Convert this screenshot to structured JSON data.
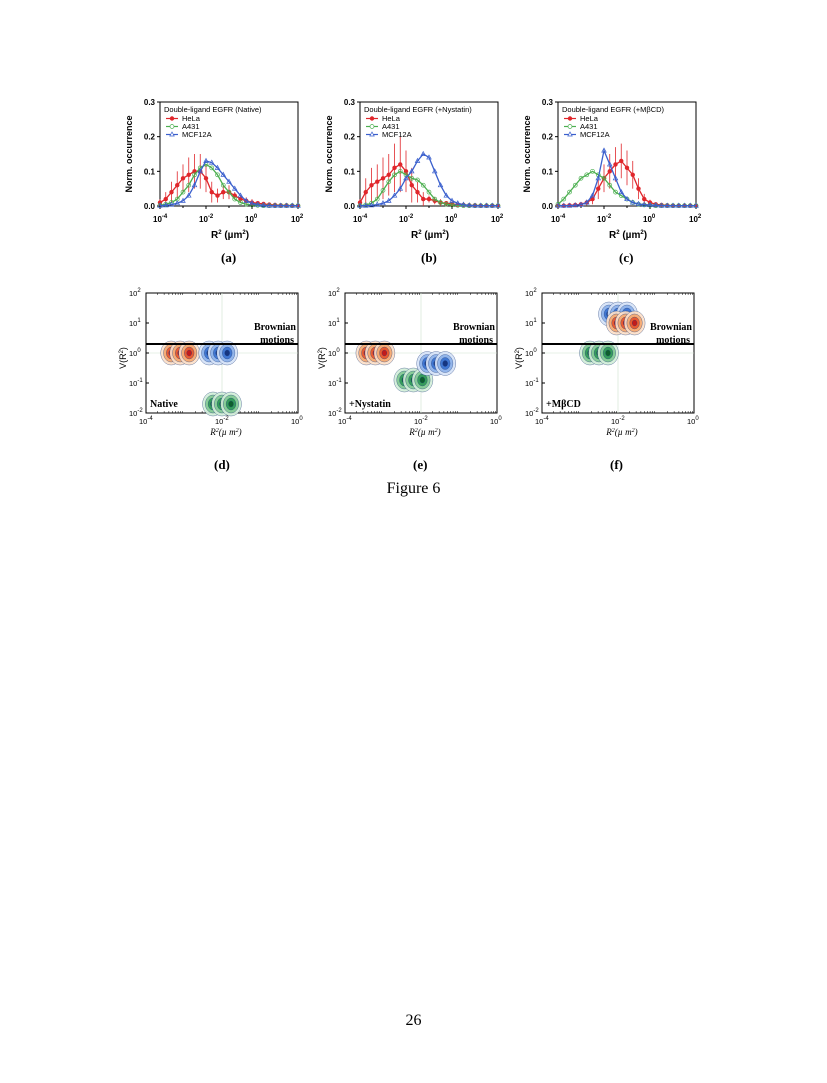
{
  "figure_caption": "Figure 6",
  "page_number": "26",
  "colors": {
    "HeLa": "#e0262b",
    "A431": "#4caf50",
    "MCF12A": "#3a5fcd"
  },
  "chart_data": [
    {
      "type": "line",
      "panel": "(a)",
      "legend_title": "Double-ligand EGFR (Native)",
      "ylabel": "Norm. occurrence",
      "xlabel": "R2 (µm2)",
      "xscale": "log",
      "xlim_exp": [
        -4,
        2
      ],
      "ylim": [
        0,
        0.3
      ],
      "yticks": [
        "0.0",
        "0.1",
        "0.2",
        "0.3"
      ],
      "xticks": [
        "10-4",
        "10-2",
        "100",
        "102"
      ],
      "series": [
        {
          "name": "HeLa",
          "marker": "filled-circle",
          "error_bars": true,
          "log10_x": [
            -4,
            -3.75,
            -3.5,
            -3.25,
            -3,
            -2.75,
            -2.5,
            -2.25,
            -2,
            -1.75,
            -1.5,
            -1.25,
            -1,
            -0.75,
            -0.5,
            -0.25,
            0,
            0.25,
            0.5,
            0.75,
            1,
            1.25,
            1.5,
            1.75,
            2
          ],
          "y": [
            0.01,
            0.02,
            0.04,
            0.06,
            0.08,
            0.09,
            0.1,
            0.1,
            0.08,
            0.04,
            0.03,
            0.04,
            0.04,
            0.03,
            0.02,
            0.015,
            0.01,
            0.008,
            0.006,
            0.004,
            0.003,
            0.002,
            0.002,
            0.001,
            0.001
          ],
          "err": [
            0.01,
            0.02,
            0.03,
            0.04,
            0.04,
            0.05,
            0.05,
            0.05,
            0.04,
            0.03,
            0.02,
            0.02,
            0.02,
            0.01,
            0.01,
            0.01,
            0.01,
            0.005,
            0.005,
            0.003,
            0.002,
            0.002,
            0.001,
            0.001,
            0.001
          ]
        },
        {
          "name": "A431",
          "marker": "open-circle",
          "log10_x": [
            -4,
            -3.75,
            -3.5,
            -3.25,
            -3,
            -2.75,
            -2.5,
            -2.25,
            -2,
            -1.75,
            -1.5,
            -1.25,
            -1,
            -0.75,
            -0.5,
            -0.25,
            0,
            0.25,
            0.5,
            0.75,
            1,
            1.25,
            1.5,
            1.75,
            2
          ],
          "y": [
            0.002,
            0.005,
            0.01,
            0.02,
            0.04,
            0.06,
            0.09,
            0.11,
            0.12,
            0.11,
            0.09,
            0.06,
            0.04,
            0.02,
            0.01,
            0.005,
            0.003,
            0.002,
            0.001,
            0.001,
            0.001,
            0.001,
            0.001,
            0.001,
            0.001
          ]
        },
        {
          "name": "MCF12A",
          "marker": "open-triangle",
          "log10_x": [
            -4,
            -3.75,
            -3.5,
            -3.25,
            -3,
            -2.75,
            -2.5,
            -2.25,
            -2,
            -1.75,
            -1.5,
            -1.25,
            -1,
            -0.75,
            -0.5,
            -0.25,
            0,
            0.25,
            0.5,
            0.75,
            1,
            1.25,
            1.5,
            1.75,
            2
          ],
          "y": [
            0.001,
            0.002,
            0.004,
            0.008,
            0.015,
            0.03,
            0.06,
            0.1,
            0.13,
            0.125,
            0.11,
            0.09,
            0.07,
            0.05,
            0.03,
            0.015,
            0.008,
            0.004,
            0.002,
            0.001,
            0.001,
            0.001,
            0.001,
            0.001,
            0.001
          ]
        }
      ]
    },
    {
      "type": "line",
      "panel": "(b)",
      "legend_title": "Double-ligand EGFR (+Nystatin)",
      "ylabel": "Norm. occurrence",
      "xlabel": "R2 (µm2)",
      "xscale": "log",
      "xlim_exp": [
        -4,
        2
      ],
      "ylim": [
        0,
        0.3
      ],
      "yticks": [
        "0.0",
        "0.1",
        "0.2",
        "0.3"
      ],
      "xticks": [
        "10-4",
        "10-2",
        "100",
        "102"
      ],
      "series": [
        {
          "name": "HeLa",
          "marker": "filled-circle",
          "error_bars": true,
          "log10_x": [
            -4,
            -3.75,
            -3.5,
            -3.25,
            -3,
            -2.75,
            -2.5,
            -2.25,
            -2,
            -1.75,
            -1.5,
            -1.25,
            -1,
            -0.75,
            -0.5,
            -0.25,
            0,
            0.25,
            0.5,
            0.75,
            1,
            1.25,
            1.5,
            1.75,
            2
          ],
          "y": [
            0.01,
            0.04,
            0.06,
            0.07,
            0.08,
            0.09,
            0.11,
            0.12,
            0.1,
            0.06,
            0.04,
            0.02,
            0.02,
            0.015,
            0.01,
            0.008,
            0.006,
            0.004,
            0.003,
            0.002,
            0.002,
            0.001,
            0.001,
            0.001,
            0.001
          ],
          "err": [
            0.01,
            0.04,
            0.05,
            0.05,
            0.06,
            0.06,
            0.07,
            0.08,
            0.06,
            0.05,
            0.03,
            0.02,
            0.01,
            0.01,
            0.01,
            0.005,
            0.005,
            0.003,
            0.002,
            0.002,
            0.001,
            0.001,
            0.001,
            0.001,
            0.001
          ]
        },
        {
          "name": "A431",
          "marker": "open-circle",
          "log10_x": [
            -4,
            -3.75,
            -3.5,
            -3.25,
            -3,
            -2.75,
            -2.5,
            -2.25,
            -2,
            -1.75,
            -1.5,
            -1.25,
            -1,
            -0.75,
            -0.5,
            -0.25,
            0,
            0.25,
            0.5,
            0.75,
            1,
            1.25,
            1.5,
            1.75,
            2
          ],
          "y": [
            0.001,
            0.003,
            0.008,
            0.02,
            0.045,
            0.07,
            0.09,
            0.1,
            0.09,
            0.08,
            0.075,
            0.06,
            0.04,
            0.02,
            0.01,
            0.005,
            0.003,
            0.002,
            0.001,
            0.001,
            0.001,
            0.001,
            0.001,
            0.001,
            0.001
          ]
        },
        {
          "name": "MCF12A",
          "marker": "open-triangle",
          "log10_x": [
            -4,
            -3.75,
            -3.5,
            -3.25,
            -3,
            -2.75,
            -2.5,
            -2.25,
            -2,
            -1.75,
            -1.5,
            -1.25,
            -1,
            -0.75,
            -0.5,
            -0.25,
            0,
            0.25,
            0.5,
            0.75,
            1,
            1.25,
            1.5,
            1.75,
            2
          ],
          "y": [
            0.001,
            0.001,
            0.002,
            0.004,
            0.008,
            0.015,
            0.03,
            0.05,
            0.08,
            0.1,
            0.13,
            0.15,
            0.14,
            0.1,
            0.06,
            0.03,
            0.015,
            0.008,
            0.004,
            0.002,
            0.001,
            0.001,
            0.001,
            0.001,
            0.001
          ]
        }
      ]
    },
    {
      "type": "line",
      "panel": "(c)",
      "legend_title": "Double-ligand EGFR (+MβCD)",
      "ylabel": "Norm. occurrence",
      "xlabel": "R2 (µm2)",
      "xscale": "log",
      "xlim_exp": [
        -4,
        2
      ],
      "ylim": [
        0,
        0.3
      ],
      "yticks": [
        "0.0",
        "0.1",
        "0.2",
        "0.3"
      ],
      "xticks": [
        "10-4",
        "10-2",
        "100",
        "102"
      ],
      "series": [
        {
          "name": "HeLa",
          "marker": "filled-circle",
          "error_bars": true,
          "log10_x": [
            -4,
            -3.75,
            -3.5,
            -3.25,
            -3,
            -2.75,
            -2.5,
            -2.25,
            -2,
            -1.75,
            -1.5,
            -1.25,
            -1,
            -0.75,
            -0.5,
            -0.25,
            0,
            0.25,
            0.5,
            0.75,
            1,
            1.25,
            1.5,
            1.75,
            2
          ],
          "y": [
            0.001,
            0.001,
            0.002,
            0.003,
            0.005,
            0.01,
            0.02,
            0.05,
            0.08,
            0.1,
            0.12,
            0.13,
            0.11,
            0.09,
            0.05,
            0.02,
            0.01,
            0.005,
            0.003,
            0.002,
            0.001,
            0.001,
            0.001,
            0.001,
            0.001
          ],
          "err": [
            0.001,
            0.001,
            0.002,
            0.002,
            0.004,
            0.008,
            0.015,
            0.03,
            0.04,
            0.05,
            0.05,
            0.05,
            0.05,
            0.04,
            0.03,
            0.015,
            0.008,
            0.004,
            0.002,
            0.001,
            0.001,
            0.001,
            0.001,
            0.001,
            0.001
          ]
        },
        {
          "name": "A431",
          "marker": "open-circle",
          "log10_x": [
            -4,
            -3.75,
            -3.5,
            -3.25,
            -3,
            -2.75,
            -2.5,
            -2.25,
            -2,
            -1.75,
            -1.5,
            -1.25,
            -1,
            -0.75,
            -0.5,
            -0.25,
            0,
            0.25,
            0.5,
            0.75,
            1,
            1.25,
            1.5,
            1.75,
            2
          ],
          "y": [
            0.005,
            0.02,
            0.04,
            0.06,
            0.08,
            0.09,
            0.1,
            0.09,
            0.08,
            0.06,
            0.04,
            0.03,
            0.02,
            0.01,
            0.005,
            0.003,
            0.002,
            0.001,
            0.001,
            0.001,
            0.001,
            0.001,
            0.001,
            0.001,
            0.001
          ]
        },
        {
          "name": "MCF12A",
          "marker": "open-triangle",
          "log10_x": [
            -4,
            -3.75,
            -3.5,
            -3.25,
            -3,
            -2.75,
            -2.5,
            -2.25,
            -2,
            -1.75,
            -1.5,
            -1.25,
            -1,
            -0.75,
            -0.5,
            -0.25,
            0,
            0.25,
            0.5,
            0.75,
            1,
            1.25,
            1.5,
            1.75,
            2
          ],
          "y": [
            0.001,
            0.001,
            0.001,
            0.002,
            0.004,
            0.01,
            0.03,
            0.08,
            0.16,
            0.12,
            0.08,
            0.04,
            0.02,
            0.01,
            0.006,
            0.004,
            0.003,
            0.002,
            0.001,
            0.001,
            0.001,
            0.001,
            0.001,
            0.001,
            0.001
          ]
        }
      ]
    },
    {
      "type": "heatmap",
      "subtype": "contour",
      "panel": "(d)",
      "annotation": "Native",
      "xlabel": "R2(µm2)",
      "ylabel": "V(R2)",
      "xscale": "log",
      "yscale": "log",
      "xlim_exp": [
        -4,
        0
      ],
      "ylim_exp": [
        -2,
        2
      ],
      "xticks": [
        "10-4",
        "10-2",
        "100"
      ],
      "yticks": [
        "10-2",
        "10-1",
        "100",
        "101",
        "102"
      ],
      "brownian_label": [
        "Brownian",
        "motions"
      ],
      "brownian_line_log10_y": 0.3,
      "clusters": [
        {
          "name": "HeLa",
          "log10_x_center": -3.1,
          "log10_y_center": 0.0
        },
        {
          "name": "MCF12A",
          "log10_x_center": -2.1,
          "log10_y_center": 0.0
        },
        {
          "name": "A431",
          "log10_x_center": -2.0,
          "log10_y_center": -1.7
        }
      ]
    },
    {
      "type": "heatmap",
      "subtype": "contour",
      "panel": "(e)",
      "annotation": "+Nystatin",
      "xlabel": "R2(µm2)",
      "ylabel": "V(R2)",
      "xscale": "log",
      "yscale": "log",
      "xlim_exp": [
        -4,
        0
      ],
      "ylim_exp": [
        -2,
        2
      ],
      "xticks": [
        "10-4",
        "10-2",
        "100"
      ],
      "yticks": [
        "10-2",
        "10-1",
        "100",
        "101",
        "102"
      ],
      "brownian_label": [
        "Brownian",
        "motions"
      ],
      "brownian_line_log10_y": 0.3,
      "clusters": [
        {
          "name": "HeLa",
          "log10_x_center": -3.2,
          "log10_y_center": 0.0
        },
        {
          "name": "A431",
          "log10_x_center": -2.2,
          "log10_y_center": -0.9
        },
        {
          "name": "MCF12A",
          "log10_x_center": -1.6,
          "log10_y_center": -0.35
        }
      ]
    },
    {
      "type": "heatmap",
      "subtype": "contour",
      "panel": "(f)",
      "annotation": "+MβCD",
      "xlabel": "R2(µm2)",
      "ylabel": "V(R2)",
      "xscale": "log",
      "yscale": "log",
      "xlim_exp": [
        -4,
        0
      ],
      "ylim_exp": [
        -2,
        2
      ],
      "xticks": [
        "10-4",
        "10-2",
        "100"
      ],
      "yticks": [
        "10-2",
        "10-1",
        "100",
        "101",
        "102"
      ],
      "brownian_label": [
        "Brownian",
        "motions"
      ],
      "brownian_line_log10_y": 0.3,
      "clusters": [
        {
          "name": "A431",
          "log10_x_center": -2.5,
          "log10_y_center": 0.0
        },
        {
          "name": "MCF12A",
          "log10_x_center": -2.0,
          "log10_y_center": 1.3
        },
        {
          "name": "HeLa",
          "log10_x_center": -1.8,
          "log10_y_center": 1.0
        }
      ]
    }
  ]
}
